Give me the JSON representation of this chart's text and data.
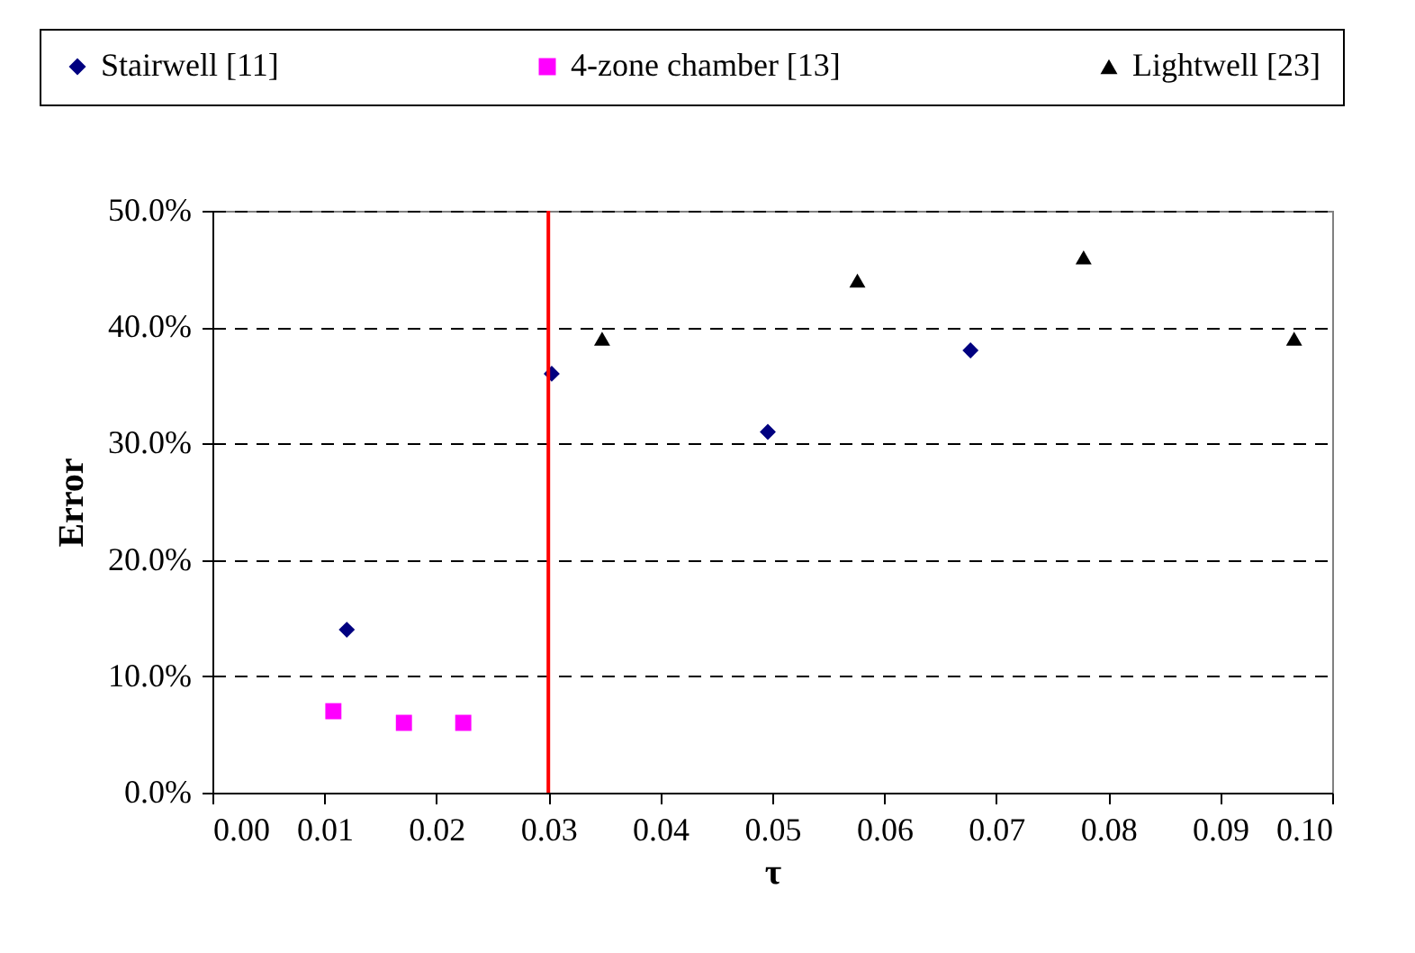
{
  "chart_data": {
    "type": "scatter",
    "xlabel": "τ",
    "ylabel": "Error",
    "series": [
      {
        "name": "Stairwell [11]",
        "color": "#000080",
        "marker": "diamond",
        "x": [
          0.012,
          0.0303,
          0.0496,
          0.0677
        ],
        "values": [
          14,
          36,
          31,
          38
        ]
      },
      {
        "name": "4-zone chamber [13]",
        "color": "#ff00ff",
        "marker": "square",
        "x": [
          0.0108,
          0.0171,
          0.0224
        ],
        "values": [
          7,
          6,
          6
        ]
      },
      {
        "name": "Lightwell [23]",
        "color": "#000000",
        "marker": "triangle",
        "x": [
          0.0348,
          0.0576,
          0.0778,
          0.0966
        ],
        "values": [
          39,
          44,
          46,
          39
        ]
      }
    ],
    "xlim": [
      0,
      0.1
    ],
    "xticks": [
      {
        "value": 0,
        "label": "0.00"
      },
      {
        "value": 0.01,
        "label": "0.01"
      },
      {
        "value": 0.02,
        "label": "0.02"
      },
      {
        "value": 0.03,
        "label": "0.03"
      },
      {
        "value": 0.04,
        "label": "0.04"
      },
      {
        "value": 0.05,
        "label": "0.05"
      },
      {
        "value": 0.06,
        "label": "0.06"
      },
      {
        "value": 0.07,
        "label": "0.07"
      },
      {
        "value": 0.08,
        "label": "0.08"
      },
      {
        "value": 0.09,
        "label": "0.09"
      },
      {
        "value": 0.1,
        "label": "0.10"
      }
    ],
    "ylim": [
      0,
      50
    ],
    "yticks": [
      {
        "value": 0,
        "label": "0.0%"
      },
      {
        "value": 10,
        "label": "10.0%"
      },
      {
        "value": 20,
        "label": "20.0%"
      },
      {
        "value": 30,
        "label": "30.0%"
      },
      {
        "value": 40,
        "label": "40.0%"
      },
      {
        "value": 50,
        "label": "50.0%"
      }
    ],
    "ref_lines": [
      {
        "axis": "x",
        "value": 0.03,
        "color": "#ff0000"
      }
    ],
    "grid": "y",
    "legend": "top"
  }
}
